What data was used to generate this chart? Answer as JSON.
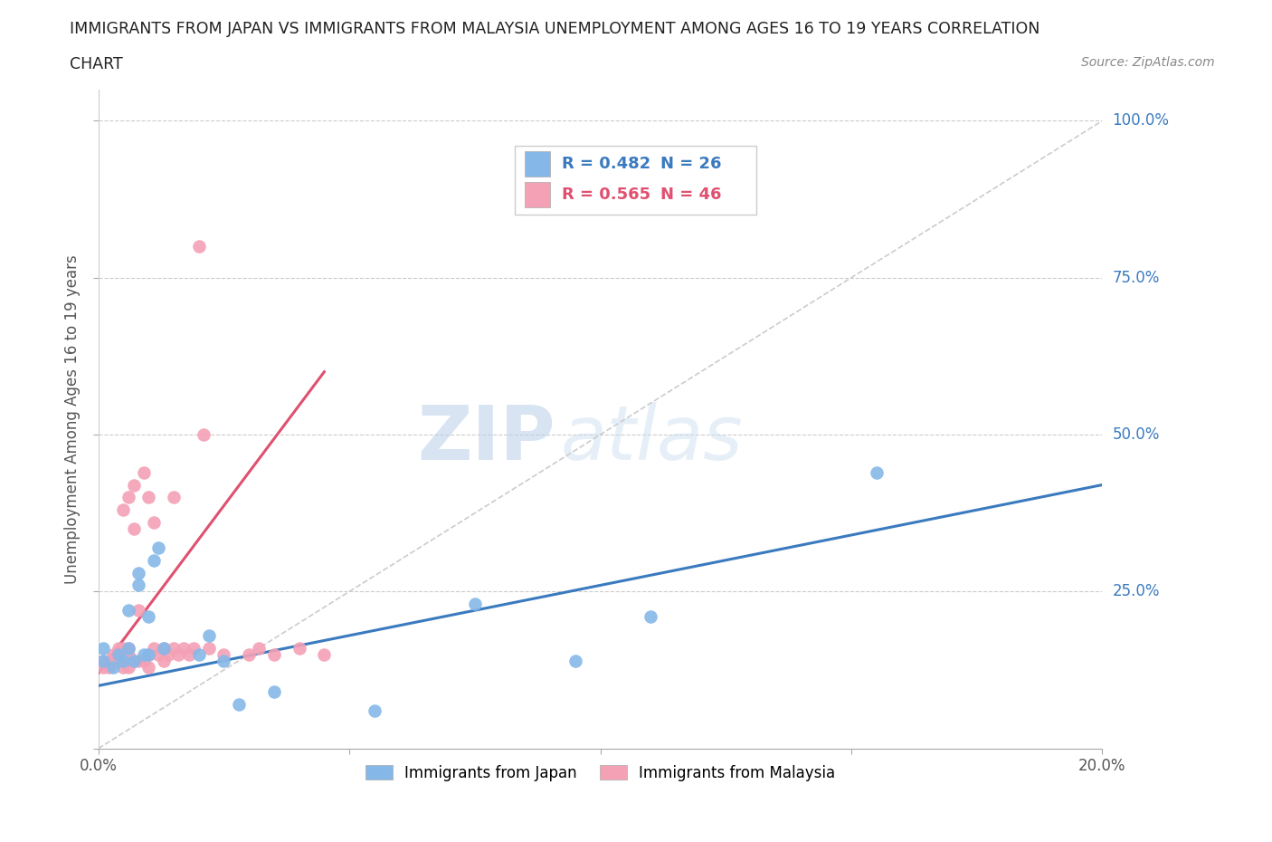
{
  "title_line1": "IMMIGRANTS FROM JAPAN VS IMMIGRANTS FROM MALAYSIA UNEMPLOYMENT AMONG AGES 16 TO 19 YEARS CORRELATION",
  "title_line2": "CHART",
  "source": "Source: ZipAtlas.com",
  "ylabel": "Unemployment Among Ages 16 to 19 years",
  "xlim": [
    0.0,
    0.2
  ],
  "ylim": [
    0.0,
    1.05
  ],
  "japan_color": "#85b8e8",
  "malaysia_color": "#f4a0b5",
  "japan_line_color": "#3a7abf",
  "malaysia_line_color": "#e05070",
  "japan_R": 0.482,
  "japan_N": 26,
  "malaysia_R": 0.565,
  "malaysia_N": 46,
  "watermark_zip": "ZIP",
  "watermark_atlas": "atlas",
  "legend_japan": "Immigrants from Japan",
  "legend_malaysia": "Immigrants from Malaysia",
  "japan_scatter_x": [
    0.001,
    0.001,
    0.003,
    0.004,
    0.005,
    0.006,
    0.006,
    0.007,
    0.008,
    0.008,
    0.009,
    0.01,
    0.01,
    0.011,
    0.012,
    0.013,
    0.02,
    0.022,
    0.025,
    0.028,
    0.035,
    0.055,
    0.075,
    0.095,
    0.11,
    0.155
  ],
  "japan_scatter_y": [
    0.14,
    0.16,
    0.13,
    0.15,
    0.14,
    0.16,
    0.22,
    0.14,
    0.26,
    0.28,
    0.15,
    0.21,
    0.15,
    0.3,
    0.32,
    0.16,
    0.15,
    0.18,
    0.14,
    0.07,
    0.09,
    0.06,
    0.23,
    0.14,
    0.21,
    0.44
  ],
  "malaysia_scatter_x": [
    0.001,
    0.001,
    0.002,
    0.003,
    0.003,
    0.004,
    0.004,
    0.005,
    0.005,
    0.005,
    0.005,
    0.006,
    0.006,
    0.006,
    0.006,
    0.007,
    0.007,
    0.007,
    0.008,
    0.008,
    0.009,
    0.009,
    0.01,
    0.01,
    0.01,
    0.011,
    0.011,
    0.012,
    0.013,
    0.013,
    0.014,
    0.015,
    0.015,
    0.016,
    0.017,
    0.018,
    0.019,
    0.02,
    0.021,
    0.022,
    0.025,
    0.03,
    0.032,
    0.035,
    0.04,
    0.045
  ],
  "malaysia_scatter_y": [
    0.13,
    0.14,
    0.13,
    0.14,
    0.15,
    0.14,
    0.16,
    0.13,
    0.15,
    0.16,
    0.38,
    0.13,
    0.15,
    0.16,
    0.4,
    0.14,
    0.35,
    0.42,
    0.14,
    0.22,
    0.14,
    0.44,
    0.13,
    0.15,
    0.4,
    0.16,
    0.36,
    0.15,
    0.14,
    0.16,
    0.15,
    0.4,
    0.16,
    0.15,
    0.16,
    0.15,
    0.16,
    0.8,
    0.5,
    0.16,
    0.15,
    0.15,
    0.16,
    0.15,
    0.16,
    0.15
  ],
  "japan_trend_x": [
    0.0,
    0.2
  ],
  "japan_trend_y": [
    0.1,
    0.42
  ],
  "malaysia_trend_x": [
    0.0,
    0.045
  ],
  "malaysia_trend_y": [
    0.12,
    0.6
  ],
  "ref_line_x": [
    0.0,
    0.2
  ],
  "ref_line_y": [
    0.0,
    1.0
  ]
}
